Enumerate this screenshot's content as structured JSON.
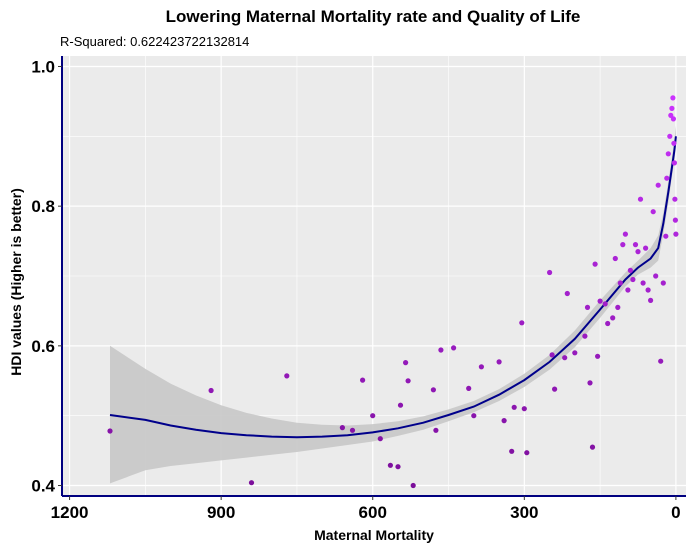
{
  "chart_data": {
    "type": "scatter",
    "title": "Lowering Maternal Mortality rate and Quality of Life",
    "subtitle": "R-Squared:  0.622423722132814",
    "xlabel": "Maternal Mortality",
    "ylabel": "HDI values (Higher is better)",
    "x_reversed": true,
    "xlim": [
      1215,
      -20
    ],
    "ylim": [
      0.385,
      1.015
    ],
    "x_ticks": [
      1200,
      900,
      600,
      300,
      0
    ],
    "x_tick_labels": [
      "1200",
      "900",
      "600",
      "300",
      "0"
    ],
    "y_ticks": [
      0.4,
      0.6,
      0.8,
      1.0
    ],
    "y_tick_labels": [
      "0.4",
      "0.6",
      "0.8",
      "1.0"
    ],
    "grid": true,
    "series": [
      {
        "points": [
          [
            1120,
            0.478
          ],
          [
            920,
            0.536
          ],
          [
            840,
            0.404
          ],
          [
            770,
            0.557
          ],
          [
            660,
            0.483
          ],
          [
            640,
            0.479
          ],
          [
            620,
            0.551
          ],
          [
            600,
            0.5
          ],
          [
            585,
            0.467
          ],
          [
            565,
            0.429
          ],
          [
            550,
            0.427
          ],
          [
            545,
            0.515
          ],
          [
            535,
            0.576
          ],
          [
            530,
            0.55
          ],
          [
            520,
            0.4
          ],
          [
            480,
            0.537
          ],
          [
            475,
            0.479
          ],
          [
            465,
            0.594
          ],
          [
            440,
            0.597
          ],
          [
            410,
            0.539
          ],
          [
            400,
            0.5
          ],
          [
            385,
            0.57
          ],
          [
            350,
            0.577
          ],
          [
            340,
            0.493
          ],
          [
            325,
            0.449
          ],
          [
            320,
            0.512
          ],
          [
            305,
            0.633
          ],
          [
            300,
            0.51
          ],
          [
            295,
            0.447
          ],
          [
            250,
            0.705
          ],
          [
            245,
            0.587
          ],
          [
            240,
            0.538
          ],
          [
            220,
            0.583
          ],
          [
            215,
            0.675
          ],
          [
            200,
            0.59
          ],
          [
            180,
            0.614
          ],
          [
            175,
            0.655
          ],
          [
            170,
            0.547
          ],
          [
            165,
            0.455
          ],
          [
            160,
            0.717
          ],
          [
            155,
            0.585
          ],
          [
            150,
            0.664
          ],
          [
            140,
            0.66
          ],
          [
            135,
            0.632
          ],
          [
            125,
            0.64
          ],
          [
            120,
            0.725
          ],
          [
            115,
            0.655
          ],
          [
            110,
            0.69
          ],
          [
            105,
            0.745
          ],
          [
            100,
            0.76
          ],
          [
            95,
            0.68
          ],
          [
            90,
            0.708
          ],
          [
            85,
            0.695
          ],
          [
            80,
            0.745
          ],
          [
            75,
            0.735
          ],
          [
            70,
            0.81
          ],
          [
            65,
            0.69
          ],
          [
            60,
            0.74
          ],
          [
            55,
            0.68
          ],
          [
            50,
            0.665
          ],
          [
            45,
            0.792
          ],
          [
            40,
            0.7
          ],
          [
            35,
            0.83
          ],
          [
            30,
            0.578
          ],
          [
            25,
            0.69
          ],
          [
            20,
            0.757
          ],
          [
            18,
            0.84
          ],
          [
            15,
            0.875
          ],
          [
            12,
            0.9
          ],
          [
            10,
            0.93
          ],
          [
            8,
            0.94
          ],
          [
            6,
            0.955
          ],
          [
            5,
            0.925
          ],
          [
            4,
            0.89
          ],
          [
            3,
            0.862
          ],
          [
            2,
            0.81
          ],
          [
            1,
            0.78
          ],
          [
            0,
            0.76
          ]
        ]
      }
    ],
    "fit": {
      "line": [
        [
          1120,
          0.501
        ],
        [
          1050,
          0.494
        ],
        [
          1000,
          0.486
        ],
        [
          950,
          0.48
        ],
        [
          900,
          0.475
        ],
        [
          850,
          0.472
        ],
        [
          800,
          0.47
        ],
        [
          750,
          0.469
        ],
        [
          700,
          0.47
        ],
        [
          650,
          0.472
        ],
        [
          600,
          0.476
        ],
        [
          550,
          0.482
        ],
        [
          500,
          0.49
        ],
        [
          450,
          0.501
        ],
        [
          400,
          0.513
        ],
        [
          350,
          0.53
        ],
        [
          300,
          0.551
        ],
        [
          250,
          0.577
        ],
        [
          200,
          0.61
        ],
        [
          150,
          0.652
        ],
        [
          100,
          0.695
        ],
        [
          75,
          0.712
        ],
        [
          50,
          0.725
        ],
        [
          35,
          0.74
        ],
        [
          25,
          0.775
        ],
        [
          15,
          0.82
        ],
        [
          8,
          0.855
        ],
        [
          3,
          0.88
        ],
        [
          0,
          0.9
        ]
      ],
      "upper": [
        [
          1120,
          0.6
        ],
        [
          1050,
          0.567
        ],
        [
          1000,
          0.546
        ],
        [
          950,
          0.529
        ],
        [
          900,
          0.515
        ],
        [
          850,
          0.504
        ],
        [
          800,
          0.496
        ],
        [
          750,
          0.49
        ],
        [
          700,
          0.487
        ],
        [
          650,
          0.486
        ],
        [
          600,
          0.488
        ],
        [
          550,
          0.492
        ],
        [
          500,
          0.499
        ],
        [
          450,
          0.509
        ],
        [
          400,
          0.521
        ],
        [
          350,
          0.538
        ],
        [
          300,
          0.56
        ],
        [
          250,
          0.587
        ],
        [
          200,
          0.622
        ],
        [
          150,
          0.665
        ],
        [
          100,
          0.705
        ],
        [
          75,
          0.722
        ],
        [
          50,
          0.74
        ],
        [
          35,
          0.758
        ],
        [
          25,
          0.79
        ],
        [
          15,
          0.835
        ],
        [
          8,
          0.87
        ],
        [
          3,
          0.895
        ],
        [
          0,
          0.915
        ]
      ],
      "lower": [
        [
          1120,
          0.403
        ],
        [
          1050,
          0.422
        ],
        [
          1000,
          0.428
        ],
        [
          950,
          0.432
        ],
        [
          900,
          0.436
        ],
        [
          850,
          0.44
        ],
        [
          800,
          0.444
        ],
        [
          750,
          0.448
        ],
        [
          700,
          0.453
        ],
        [
          650,
          0.458
        ],
        [
          600,
          0.463
        ],
        [
          550,
          0.471
        ],
        [
          500,
          0.48
        ],
        [
          450,
          0.492
        ],
        [
          400,
          0.505
        ],
        [
          350,
          0.521
        ],
        [
          300,
          0.541
        ],
        [
          250,
          0.566
        ],
        [
          200,
          0.598
        ],
        [
          150,
          0.64
        ],
        [
          100,
          0.685
        ],
        [
          75,
          0.702
        ],
        [
          50,
          0.712
        ],
        [
          35,
          0.722
        ],
        [
          25,
          0.76
        ],
        [
          15,
          0.805
        ],
        [
          8,
          0.842
        ],
        [
          3,
          0.865
        ],
        [
          0,
          0.885
        ]
      ]
    },
    "colors": {
      "panel_background": "#ebebeb",
      "grid": "#ffffff",
      "ribbon": "#c8c8c8",
      "fit_line": "#00008b",
      "axis_line": "#000080",
      "point_low": "#7b0e9a",
      "point_high": "#cc33ff"
    }
  }
}
